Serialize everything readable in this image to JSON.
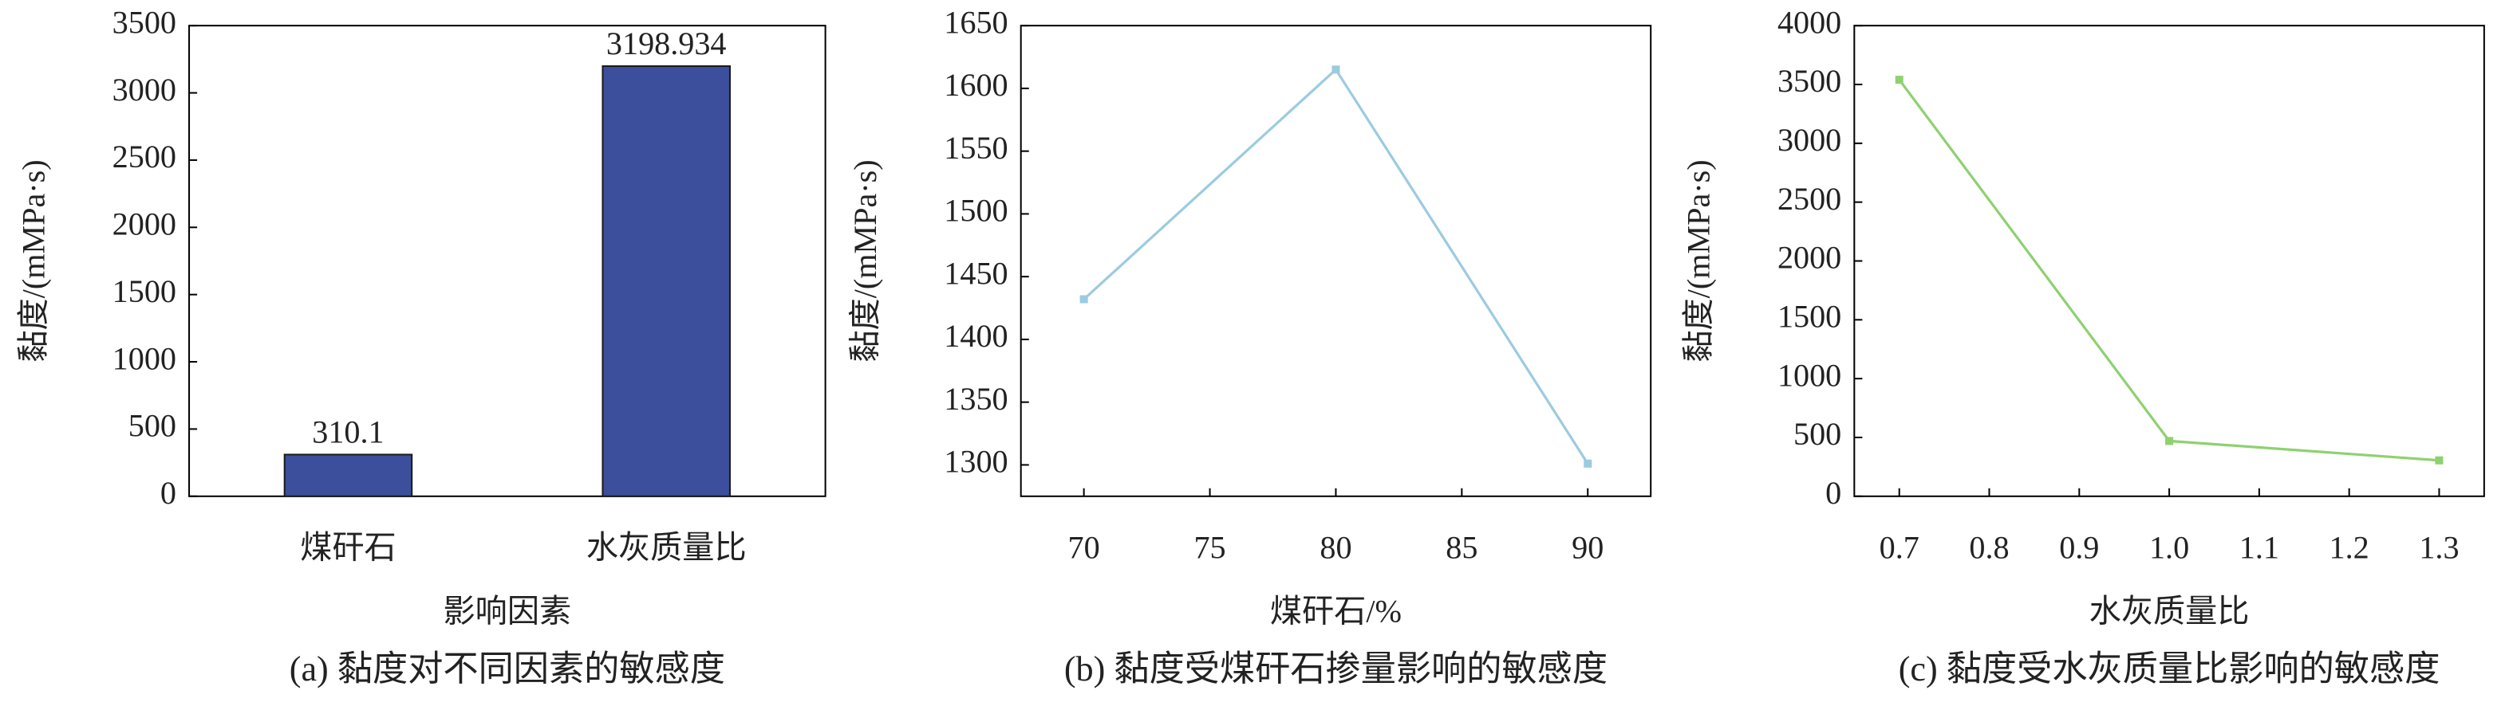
{
  "chart_data": [
    {
      "type": "bar",
      "caption": "(a) 黏度对不同因素的敏感度",
      "xlabel": "影响因素",
      "ylabel": "黏度/(mMPa·s)",
      "categories": [
        "煤矸石",
        "水灰质量比"
      ],
      "values": [
        310.1,
        3198.934
      ],
      "color": "#3c4f9c",
      "ylim": [
        0,
        3500
      ],
      "yticks": [
        0,
        500,
        1000,
        1500,
        2000,
        2500,
        3000,
        3500
      ]
    },
    {
      "type": "line",
      "caption": "(b) 黏度受煤矸石掺量影响的敏感度",
      "xlabel": "煤矸石/%",
      "ylabel": "黏度/(mMPa·s)",
      "x": [
        70,
        80,
        90
      ],
      "values": [
        1432,
        1615,
        1301
      ],
      "color": "#9ccbe0",
      "xlim": [
        67.5,
        92.5
      ],
      "xticks": [
        70,
        75,
        80,
        85,
        90
      ],
      "ylim": [
        1275,
        1650
      ],
      "yticks": [
        1300,
        1350,
        1400,
        1450,
        1500,
        1550,
        1600,
        1650
      ]
    },
    {
      "type": "line",
      "caption": "(c) 黏度受水灰质量比影响的敏感度",
      "xlabel": "水灰质量比",
      "ylabel": "黏度/(mMPa·s)",
      "x": [
        0.7,
        1.0,
        1.3
      ],
      "values": [
        3540,
        470,
        305
      ],
      "color": "#8fd170",
      "xlim": [
        0.65,
        1.35
      ],
      "xticks": [
        0.7,
        0.8,
        0.9,
        {
          "value": 1.0,
          "label": "1.0"
        },
        1.1,
        1.2,
        1.3
      ],
      "ylim": [
        0,
        4000
      ],
      "yticks": [
        0,
        500,
        1000,
        1500,
        2000,
        2500,
        3000,
        3500,
        4000
      ]
    }
  ]
}
